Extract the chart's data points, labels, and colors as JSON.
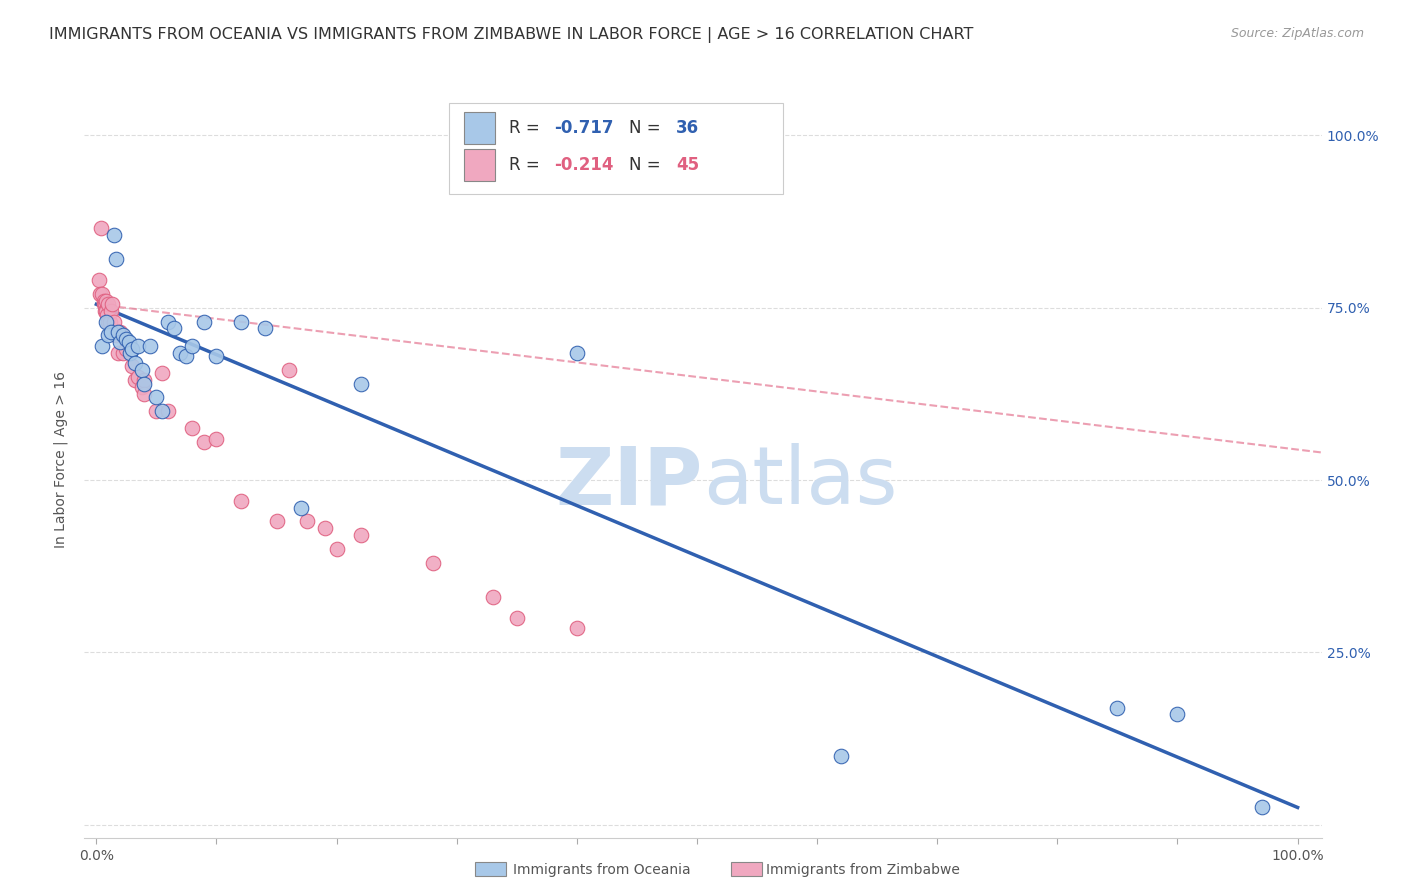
{
  "title": "IMMIGRANTS FROM OCEANIA VS IMMIGRANTS FROM ZIMBABWE IN LABOR FORCE | AGE > 16 CORRELATION CHART",
  "source": "Source: ZipAtlas.com",
  "ylabel": "In Labor Force | Age > 16",
  "yticks": [
    0.0,
    0.25,
    0.5,
    0.75,
    1.0
  ],
  "ytick_labels_right": [
    "",
    "25.0%",
    "50.0%",
    "75.0%",
    "100.0%"
  ],
  "xticks": [
    0.0,
    0.1,
    0.2,
    0.3,
    0.4,
    0.5,
    0.6,
    0.7,
    0.8,
    0.9,
    1.0
  ],
  "xlim": [
    -0.01,
    1.02
  ],
  "ylim": [
    -0.02,
    1.08
  ],
  "legend_r_oceania": "-0.717",
  "legend_n_oceania": "36",
  "legend_r_zimbabwe": "-0.214",
  "legend_n_zimbabwe": "45",
  "color_oceania": "#a8c8e8",
  "color_zimbabwe": "#f0a8c0",
  "color_oceania_line": "#3060b0",
  "color_zimbabwe_line": "#e06080",
  "watermark_zip": "ZIP",
  "watermark_atlas": "atlas",
  "watermark_color": "#ccddf0",
  "oceania_x": [
    0.005,
    0.008,
    0.01,
    0.012,
    0.015,
    0.016,
    0.018,
    0.02,
    0.022,
    0.025,
    0.027,
    0.028,
    0.03,
    0.032,
    0.035,
    0.038,
    0.04,
    0.045,
    0.05,
    0.055,
    0.06,
    0.065,
    0.07,
    0.075,
    0.08,
    0.09,
    0.1,
    0.12,
    0.14,
    0.17,
    0.22,
    0.4,
    0.62,
    0.85,
    0.9,
    0.97
  ],
  "oceania_y": [
    0.695,
    0.73,
    0.71,
    0.715,
    0.855,
    0.82,
    0.715,
    0.7,
    0.71,
    0.705,
    0.7,
    0.685,
    0.69,
    0.67,
    0.695,
    0.66,
    0.64,
    0.695,
    0.62,
    0.6,
    0.73,
    0.72,
    0.685,
    0.68,
    0.695,
    0.73,
    0.68,
    0.73,
    0.72,
    0.46,
    0.64,
    0.685,
    0.1,
    0.17,
    0.16,
    0.025
  ],
  "zimbabwe_x": [
    0.002,
    0.003,
    0.004,
    0.005,
    0.006,
    0.006,
    0.007,
    0.007,
    0.008,
    0.008,
    0.009,
    0.01,
    0.01,
    0.011,
    0.012,
    0.013,
    0.015,
    0.016,
    0.018,
    0.02,
    0.022,
    0.025,
    0.03,
    0.032,
    0.035,
    0.038,
    0.04,
    0.04,
    0.05,
    0.055,
    0.06,
    0.08,
    0.09,
    0.1,
    0.12,
    0.15,
    0.16,
    0.175,
    0.19,
    0.2,
    0.22,
    0.28,
    0.33,
    0.35,
    0.4
  ],
  "zimbabwe_y": [
    0.79,
    0.77,
    0.865,
    0.77,
    0.76,
    0.755,
    0.755,
    0.745,
    0.745,
    0.76,
    0.74,
    0.755,
    0.73,
    0.73,
    0.745,
    0.755,
    0.73,
    0.71,
    0.685,
    0.715,
    0.685,
    0.69,
    0.665,
    0.645,
    0.65,
    0.635,
    0.645,
    0.625,
    0.6,
    0.655,
    0.6,
    0.575,
    0.555,
    0.56,
    0.47,
    0.44,
    0.66,
    0.44,
    0.43,
    0.4,
    0.42,
    0.38,
    0.33,
    0.3,
    0.285
  ],
  "oceania_trendline_x": [
    0.0,
    1.0
  ],
  "oceania_trendline_y": [
    0.755,
    0.025
  ],
  "zimbabwe_trendline_x": [
    0.0,
    1.02
  ],
  "zimbabwe_trendline_y": [
    0.755,
    0.54
  ],
  "grid_color": "#dddddd",
  "background_color": "#ffffff",
  "title_fontsize": 11.5,
  "source_fontsize": 9,
  "axis_label_fontsize": 10,
  "tick_fontsize": 10,
  "legend_fontsize": 12
}
